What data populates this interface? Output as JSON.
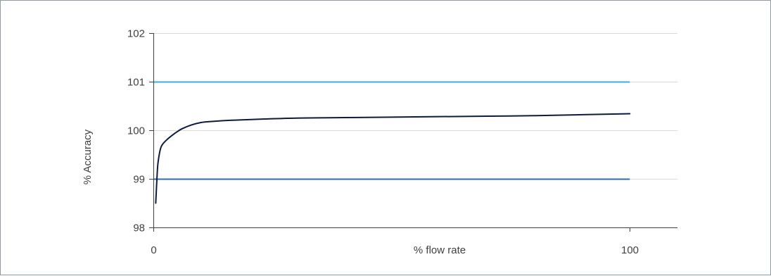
{
  "chart_data": {
    "type": "line",
    "title": "",
    "xlabel": "% flow rate",
    "ylabel": "% Accuracy",
    "xlim": [
      0,
      110
    ],
    "ylim": [
      98,
      102
    ],
    "x_ticks": [
      0,
      100
    ],
    "y_ticks": [
      98,
      99,
      100,
      101,
      102
    ],
    "grid": true,
    "legend": "none",
    "series": [
      {
        "color": "#0d1b3e",
        "x": [
          0.5,
          0.8,
          1,
          1.5,
          2,
          3,
          4,
          5,
          6,
          8,
          10,
          12,
          15,
          20,
          30,
          40,
          50,
          60,
          70,
          80,
          90,
          100
        ],
        "y": [
          98.5,
          99.1,
          99.35,
          99.62,
          99.72,
          99.82,
          99.9,
          99.97,
          100.03,
          100.11,
          100.16,
          100.18,
          100.2,
          100.22,
          100.25,
          100.26,
          100.27,
          100.28,
          100.29,
          100.3,
          100.32,
          100.34
        ]
      }
    ],
    "reference_lines": [
      {
        "y": 101,
        "x_range": [
          0,
          100
        ],
        "color": "#36b0d8"
      },
      {
        "y": 99,
        "x_range": [
          0,
          100
        ],
        "color": "#2b6cb3"
      }
    ],
    "colors": {
      "grid": "#d9d9d9",
      "axis": "#404040",
      "frame": "#8f9aa3"
    }
  }
}
